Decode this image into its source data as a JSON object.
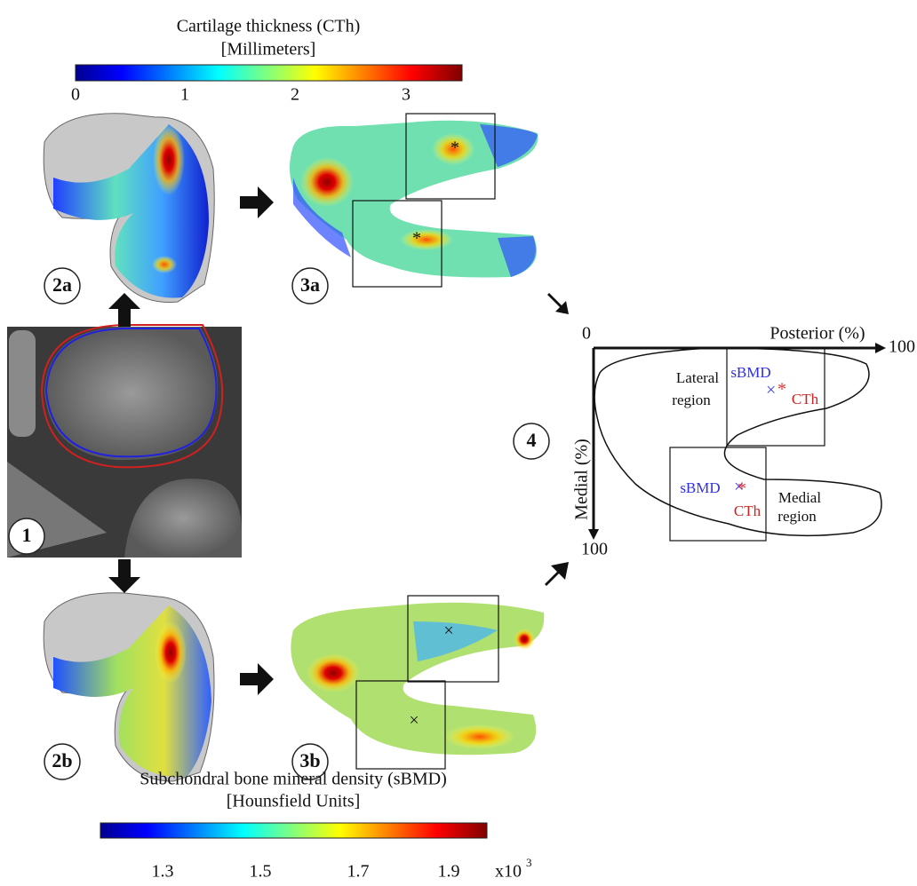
{
  "colorbar_top": {
    "title": "Cartilage thickness (CTh)",
    "unit": "[Millimeters]",
    "ticks": [
      "0",
      "1",
      "2",
      "3"
    ]
  },
  "panels": {
    "p1": "1",
    "p2a": "2a",
    "p3a": "3a",
    "p2b": "2b",
    "p3b": "3b",
    "p4": "4"
  },
  "schematic": {
    "origin": "0",
    "x_axis": "Posterior (%)",
    "x_end": "100",
    "y_axis": "Medial (%)",
    "y_end": "100",
    "lateral": {
      "label": [
        "Lateral",
        "region"
      ],
      "sbmd": "sBMD",
      "cth": "CTh"
    },
    "medial": {
      "label": [
        "Medial",
        "region"
      ],
      "sbmd": "sBMD",
      "cth": "CTh"
    }
  },
  "colorbar_bottom": {
    "title": "Subchondral bone mineral density (sBMD)",
    "unit": "[Hounsfield Units]",
    "ticks": [
      "1.3",
      "1.5",
      "1.7",
      "1.9"
    ],
    "multiplier": "x10",
    "exponent": "3"
  }
}
